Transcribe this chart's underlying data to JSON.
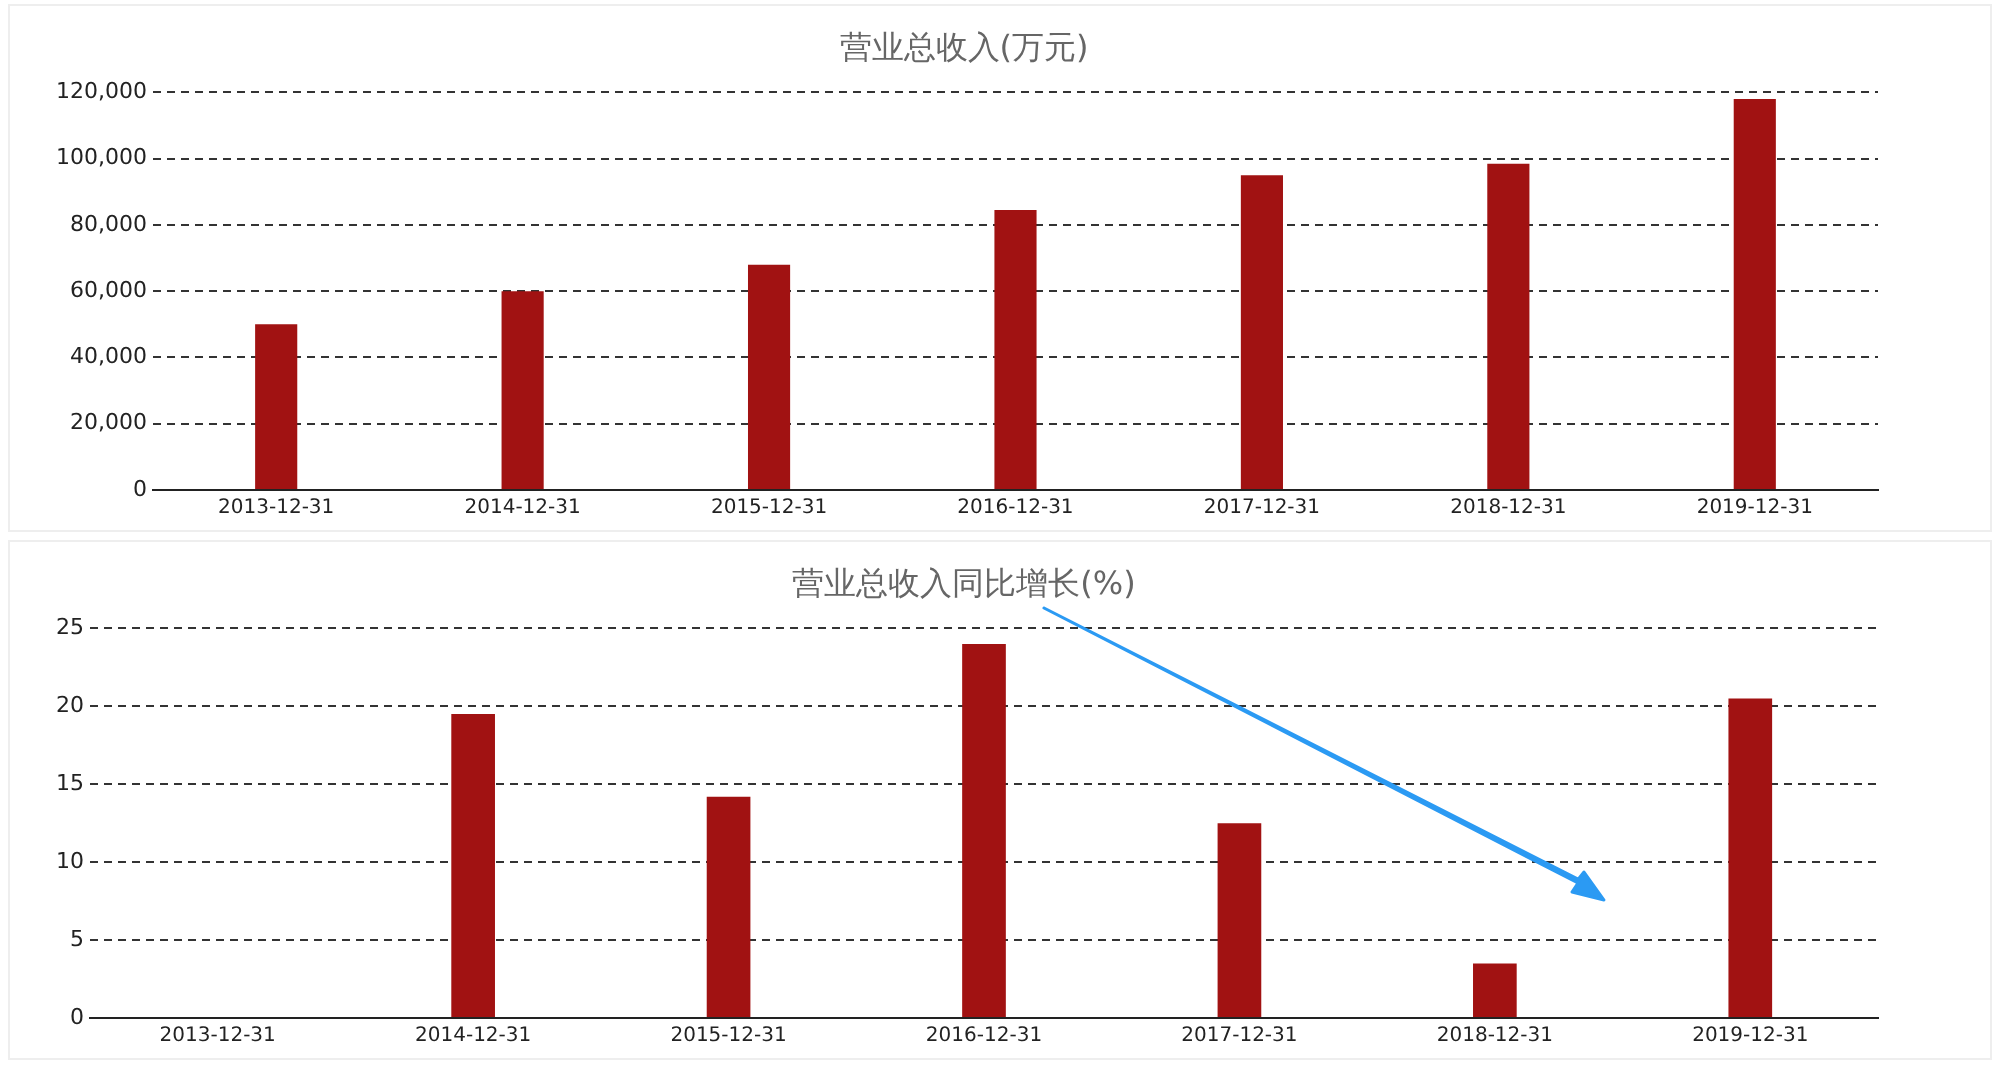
{
  "chart_data": [
    {
      "type": "bar",
      "title": "营业总收入(万元)",
      "categories": [
        "2013-12-31",
        "2014-12-31",
        "2015-12-31",
        "2016-12-31",
        "2017-12-31",
        "2018-12-31",
        "2019-12-31"
      ],
      "values": [
        50000,
        60000,
        68000,
        84500,
        95000,
        98500,
        118000
      ],
      "color": "#a11212",
      "ylim": [
        0,
        120000
      ],
      "yticks": [
        {
          "value": 0,
          "label": "0"
        },
        {
          "value": 20000,
          "label": "20,000"
        },
        {
          "value": 40000,
          "label": "40,000"
        },
        {
          "value": 60000,
          "label": "60,000"
        },
        {
          "value": 80000,
          "label": "80,000"
        },
        {
          "value": 100000,
          "label": "100,000"
        },
        {
          "value": 120000,
          "label": "120,000"
        }
      ],
      "grid": "y",
      "line_style": "dashed",
      "legend": false
    },
    {
      "type": "bar",
      "title": "营业总收入同比增长(%)",
      "categories": [
        "2013-12-31",
        "2014-12-31",
        "2015-12-31",
        "2016-12-31",
        "2017-12-31",
        "2018-12-31",
        "2019-12-31"
      ],
      "values": [
        null,
        19.5,
        14.2,
        24,
        12.5,
        3.5,
        20.5
      ],
      "color": "#a11212",
      "ylim": [
        0,
        25
      ],
      "yticks": [
        0,
        5,
        10,
        15,
        20,
        25
      ],
      "grid": "y",
      "line_style": "dashed",
      "legend": false
    }
  ]
}
